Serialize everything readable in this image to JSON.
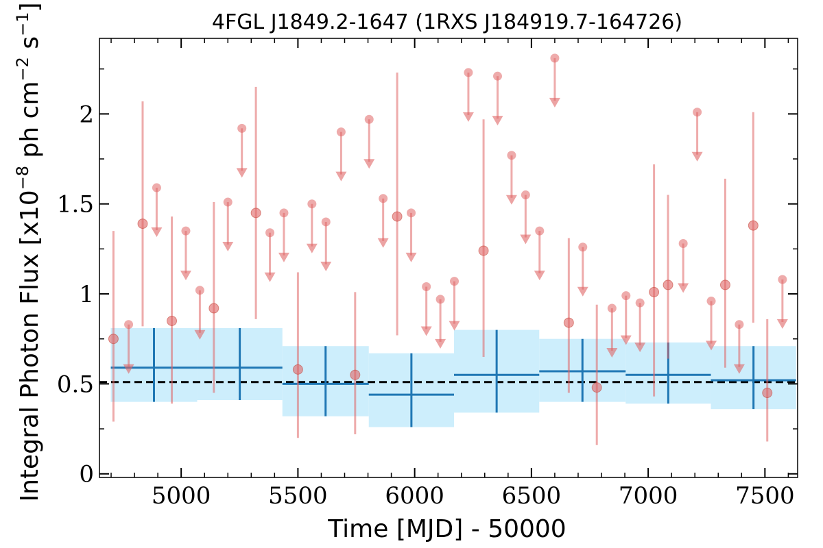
{
  "chart_data": {
    "type": "scatter",
    "title": "4FGL J1849.2-1647 (1RXS J184919.7-164726)",
    "xlabel": "Time [MJD] - 50000",
    "ylabel": "Integral Photon Flux [x10^-8 ph cm^-2 s^-1]",
    "ylabel_parts": {
      "pre": "Integral Photon Flux [x10",
      "exp1": "−8",
      "mid": " ph cm",
      "exp2": "−2",
      "mid2": " s",
      "exp3": "−1",
      "post": "]"
    },
    "xlim": [
      4650,
      7640
    ],
    "ylim": [
      -0.02,
      2.42
    ],
    "x_ticks": [
      5000,
      5500,
      6000,
      6500,
      7000,
      7500
    ],
    "x_tick_labels": [
      "5000",
      "5500",
      "6000",
      "6500",
      "7000",
      "7500"
    ],
    "y_ticks": [
      0,
      0.5,
      1,
      1.5,
      2
    ],
    "y_tick_labels": [
      "0",
      "0.5",
      "1",
      "1.5",
      "2"
    ],
    "mean_flux": 0.51,
    "colors": {
      "points": "#e06666",
      "bins": "#1f77b4",
      "band": "#cdeefc",
      "mean_line": "#000000"
    },
    "series": [
      {
        "points": [
          {
            "x": 4710,
            "y": 0.75,
            "lo": 0.29,
            "hi": 1.35
          },
          {
            "x": 4835,
            "y": 1.39,
            "lo": 0.82,
            "hi": 2.07
          },
          {
            "x": 4960,
            "y": 0.85,
            "lo": 0.39,
            "hi": 1.43
          },
          {
            "x": 5140,
            "y": 0.92,
            "lo": 0.45,
            "hi": 1.51
          },
          {
            "x": 5320,
            "y": 1.45,
            "lo": 0.86,
            "hi": 2.15
          },
          {
            "x": 5500,
            "y": 0.58,
            "lo": 0.2,
            "hi": 1.12
          },
          {
            "x": 5745,
            "y": 0.55,
            "lo": 0.22,
            "hi": 1.01
          },
          {
            "x": 5925,
            "y": 1.43,
            "lo": 0.77,
            "hi": 2.23
          },
          {
            "x": 6295,
            "y": 1.24,
            "lo": 0.65,
            "hi": 1.97
          },
          {
            "x": 6660,
            "y": 0.84,
            "lo": 0.45,
            "hi": 1.31
          },
          {
            "x": 6780,
            "y": 0.48,
            "lo": 0.16,
            "hi": 0.94
          },
          {
            "x": 7025,
            "y": 1.01,
            "lo": 0.43,
            "hi": 1.72
          },
          {
            "x": 7085,
            "y": 1.05,
            "lo": 0.64,
            "hi": 1.55
          },
          {
            "x": 7330,
            "y": 1.05,
            "lo": 0.59,
            "hi": 1.64
          },
          {
            "x": 7450,
            "y": 1.38,
            "lo": 0.84,
            "hi": 2.01
          },
          {
            "x": 7510,
            "y": 0.45,
            "lo": 0.18,
            "hi": 0.86
          }
        ]
      },
      {
        "upper_limits": [
          {
            "x": 4775,
            "y": 0.83
          },
          {
            "x": 4895,
            "y": 1.59
          },
          {
            "x": 5020,
            "y": 1.35
          },
          {
            "x": 5080,
            "y": 1.02
          },
          {
            "x": 5200,
            "y": 1.51
          },
          {
            "x": 5260,
            "y": 1.92
          },
          {
            "x": 5380,
            "y": 1.34
          },
          {
            "x": 5440,
            "y": 1.45
          },
          {
            "x": 5560,
            "y": 1.5
          },
          {
            "x": 5620,
            "y": 1.4
          },
          {
            "x": 5685,
            "y": 1.9
          },
          {
            "x": 5805,
            "y": 1.97
          },
          {
            "x": 5865,
            "y": 1.53
          },
          {
            "x": 5985,
            "y": 1.45
          },
          {
            "x": 6050,
            "y": 1.04
          },
          {
            "x": 6110,
            "y": 0.97
          },
          {
            "x": 6170,
            "y": 1.07
          },
          {
            "x": 6230,
            "y": 2.23
          },
          {
            "x": 6355,
            "y": 2.21
          },
          {
            "x": 6415,
            "y": 1.77
          },
          {
            "x": 6475,
            "y": 1.55
          },
          {
            "x": 6535,
            "y": 1.35
          },
          {
            "x": 6600,
            "y": 2.31
          },
          {
            "x": 6720,
            "y": 1.26
          },
          {
            "x": 6845,
            "y": 0.92
          },
          {
            "x": 6905,
            "y": 0.99
          },
          {
            "x": 6965,
            "y": 0.95
          },
          {
            "x": 7150,
            "y": 1.28
          },
          {
            "x": 7210,
            "y": 2.01
          },
          {
            "x": 7270,
            "y": 0.96
          },
          {
            "x": 7390,
            "y": 0.83
          },
          {
            "x": 7575,
            "y": 1.08
          }
        ]
      },
      {
        "bins": [
          {
            "x0": 4675,
            "x1": 5045,
            "y": 0.59,
            "lo": 0.4,
            "hi": 0.81
          },
          {
            "x0": 5045,
            "x1": 5410,
            "y": 0.59,
            "lo": 0.41,
            "hi": 0.81
          },
          {
            "x0": 5410,
            "x1": 5780,
            "y": 0.5,
            "lo": 0.32,
            "hi": 0.71
          },
          {
            "x0": 5780,
            "x1": 6145,
            "y": 0.44,
            "lo": 0.26,
            "hi": 0.67
          },
          {
            "x0": 6145,
            "x1": 6510,
            "y": 0.55,
            "lo": 0.34,
            "hi": 0.8
          },
          {
            "x0": 6510,
            "x1": 6880,
            "y": 0.57,
            "lo": 0.4,
            "hi": 0.75
          },
          {
            "x0": 6880,
            "x1": 7245,
            "y": 0.55,
            "lo": 0.39,
            "hi": 0.73
          },
          {
            "x0": 7245,
            "x1": 7610,
            "y": 0.52,
            "lo": 0.36,
            "hi": 0.71
          }
        ]
      }
    ]
  }
}
